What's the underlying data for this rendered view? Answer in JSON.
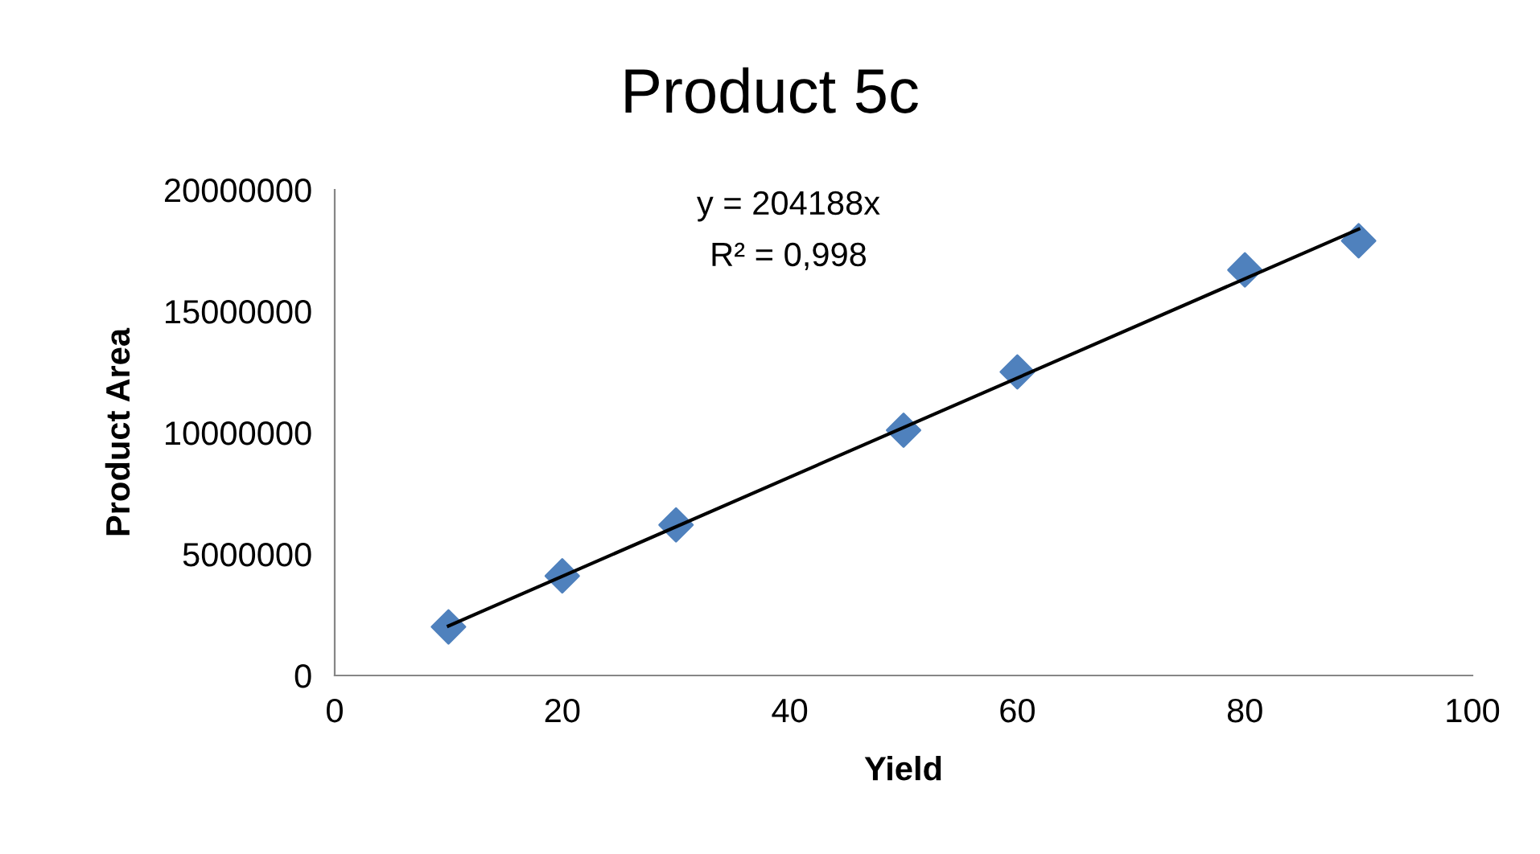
{
  "chart_data": {
    "type": "scatter",
    "title": "Product 5c",
    "xlabel": "Yield",
    "ylabel": "Product Area",
    "xlim": [
      0,
      100
    ],
    "xticks": [
      0,
      20,
      40,
      60,
      80,
      100
    ],
    "ylim": [
      0,
      20000000
    ],
    "yticks": [
      0,
      5000000,
      10000000,
      15000000,
      20000000
    ],
    "grid": false,
    "legend": false,
    "series": [
      {
        "marker": "diamond",
        "color": "#4f81bd",
        "x": [
          10,
          20,
          30,
          50,
          60,
          80,
          90
        ],
        "values": [
          2000000,
          4100000,
          6200000,
          10100000,
          12500000,
          16700000,
          17900000
        ]
      },
      {
        "type": "line",
        "marker": "none",
        "color": "#000000",
        "x": [
          10,
          90
        ],
        "values": [
          2040000,
          18380000
        ]
      }
    ],
    "annotations": [
      "y = 204188x",
      "R² = 0,998"
    ]
  }
}
